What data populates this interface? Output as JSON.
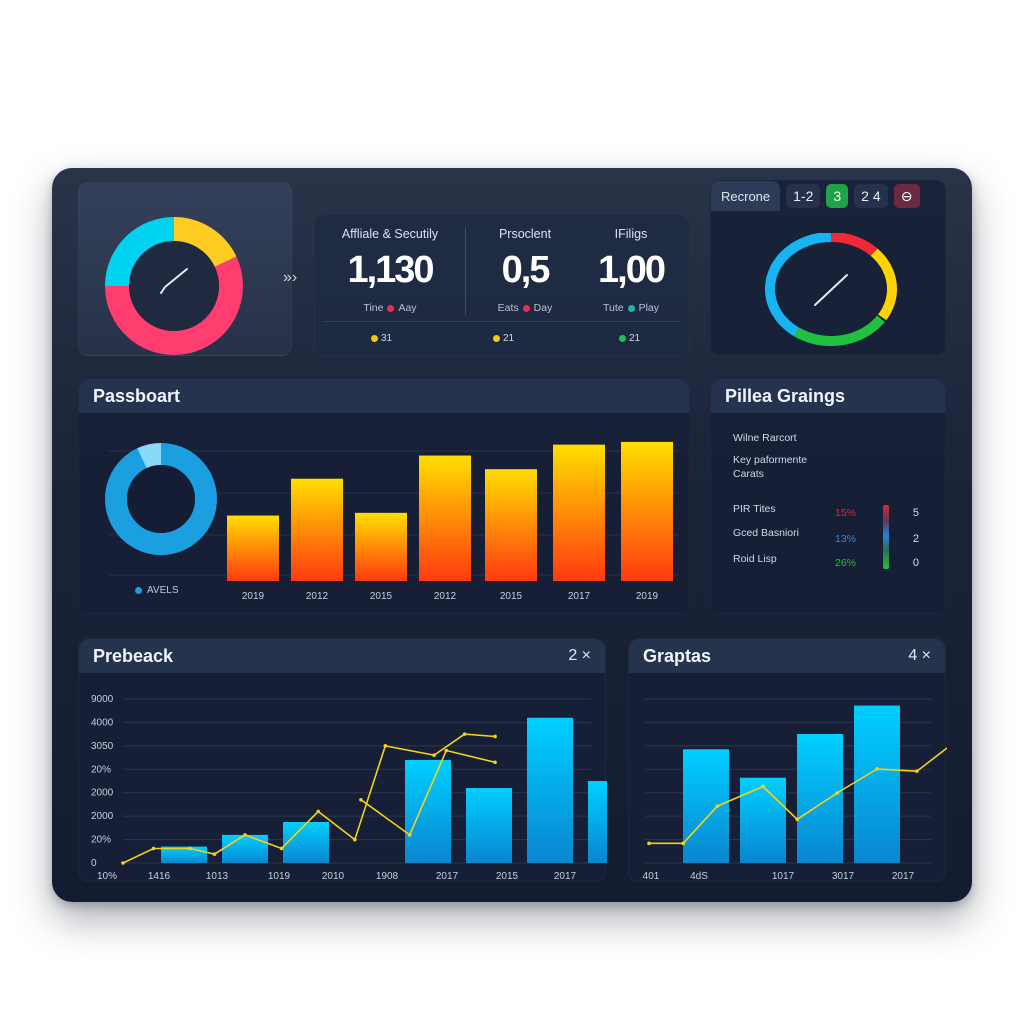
{
  "top_left_card": {
    "donut_segments": [
      {
        "color": "#00d2f0",
        "fraction": 0.25
      },
      {
        "color": "#ffcc22",
        "fraction": 0.18
      },
      {
        "color": "#ff3d6e",
        "fraction": 0.57
      }
    ],
    "center_icon": "check-icon",
    "side_icon_label": "»›"
  },
  "kpi_card": {
    "kpis": [
      {
        "label": "Affliale & Secutily",
        "value": "1,130",
        "sub_left": "Tine",
        "sub_right": "Aay",
        "dot_color": "#e8304f"
      },
      {
        "label": "Prsoclent",
        "value": "0,5",
        "sub_left": "Eats",
        "sub_right": "Day",
        "dot_color": "#e8304f"
      },
      {
        "label": "IFiligs",
        "value": "1,00",
        "sub_left": "Tute",
        "sub_right": "Play",
        "dot_color": "#18b8a8"
      }
    ],
    "footer": [
      {
        "value": "31",
        "dot_color": "#f5c518"
      },
      {
        "value": "21",
        "dot_color": "#f5c518"
      },
      {
        "value": "21",
        "dot_color": "#1ec05a"
      }
    ]
  },
  "gauge_card": {
    "tab_label": "Recrone",
    "chips": [
      {
        "label": "1-2",
        "style": "plain"
      },
      {
        "label": "3",
        "style": "green"
      },
      {
        "label": "2 4",
        "style": "plain"
      },
      {
        "label": "⊖",
        "style": "maroon"
      }
    ],
    "ring_segments": [
      {
        "color": "#16b4f0",
        "from": 180,
        "to": 360
      },
      {
        "color": "#f02838",
        "from": 0,
        "to": 45
      },
      {
        "color": "#ffd400",
        "from": 45,
        "to": 125
      },
      {
        "color": "#22c040",
        "from": 125,
        "to": 215
      }
    ]
  },
  "passboart_card": {
    "title": "Passboart",
    "legend_label": "AVELS",
    "donut_color": "#1c9fe0",
    "donut_highlight": "#9fe3fb"
  },
  "pillea_card": {
    "title": "Pillea Graings",
    "lines": [
      "Wilne Rarcort",
      "Key paformente",
      "Carats"
    ],
    "rows": [
      {
        "label": "PIR Tites",
        "pct": "15%",
        "pct_color": "#e0253a",
        "num": "5"
      },
      {
        "label": "Gced Basniori",
        "pct": "13%",
        "pct_color": "#2a8ae0",
        "num": "2"
      },
      {
        "label": "Roid Lisp",
        "pct": "26%",
        "pct_color": "#24c040",
        "num": "0"
      }
    ]
  },
  "prebeack_card": {
    "title": "Prebeack",
    "header_right": "2 ×"
  },
  "graptas_card": {
    "title": "Graptas",
    "header_right": "4 ×"
  },
  "chart_data": [
    {
      "id": "passboart",
      "type": "bar",
      "title": "Passboart",
      "categories": [
        "2019",
        "2012",
        "2015",
        "2012",
        "2015",
        "2017",
        "2019"
      ],
      "values": [
        48,
        75,
        50,
        92,
        82,
        100,
        102
      ],
      "ylim": [
        0,
        110
      ],
      "grid": true,
      "gradient": [
        "#ffde00",
        "#ff3a10"
      ]
    },
    {
      "id": "prebeack",
      "type": "bar",
      "title": "Prebeack",
      "y_tick_labels": [
        "0",
        "20%",
        "2000",
        "2000",
        "20%",
        "3050",
        "4000",
        "9000"
      ],
      "categories": [
        "10%",
        "1416",
        "1013",
        "1019",
        "2010",
        "1908",
        "2017",
        "2015",
        "2017"
      ],
      "values": [
        0,
        700,
        1200,
        1750,
        0,
        4400,
        3200,
        6200,
        3500
      ],
      "line_series": [
        {
          "name": "line-a",
          "color": "#f2d31a",
          "points": [
            [
              0,
              0
            ],
            [
              0.5,
              620
            ],
            [
              1.1,
              620
            ],
            [
              1.5,
              380
            ],
            [
              2,
              1200
            ],
            [
              2.6,
              620
            ],
            [
              3.2,
              2200
            ],
            [
              3.8,
              1000
            ],
            [
              4.3,
              5000
            ],
            [
              5.1,
              4600
            ],
            [
              5.6,
              5500
            ],
            [
              6.1,
              5400
            ]
          ]
        },
        {
          "name": "line-b",
          "color": "#f2d31a",
          "points": [
            [
              3.9,
              2700
            ],
            [
              4.7,
              1200
            ],
            [
              5.3,
              4800
            ],
            [
              6.1,
              4300
            ]
          ]
        }
      ],
      "ylim": [
        0,
        7000
      ],
      "grid": true
    },
    {
      "id": "graptas",
      "type": "bar",
      "title": "Graptas",
      "categories": [
        "401",
        "4dS",
        "1017",
        "3017",
        "2017"
      ],
      "values": [
        0,
        5200,
        3900,
        5900,
        7200
      ],
      "line_series": [
        {
          "name": "trend",
          "color": "#f2d31a",
          "points": [
            [
              0,
              900
            ],
            [
              0.6,
              900
            ],
            [
              1.2,
              2600
            ],
            [
              2.0,
              3500
            ],
            [
              2.6,
              2000
            ],
            [
              3.3,
              3200
            ],
            [
              4.0,
              4300
            ],
            [
              4.7,
              4200
            ],
            [
              5.3,
              5400
            ],
            [
              5.9,
              5100
            ]
          ]
        }
      ],
      "ylim": [
        0,
        7500
      ],
      "grid": true
    }
  ]
}
